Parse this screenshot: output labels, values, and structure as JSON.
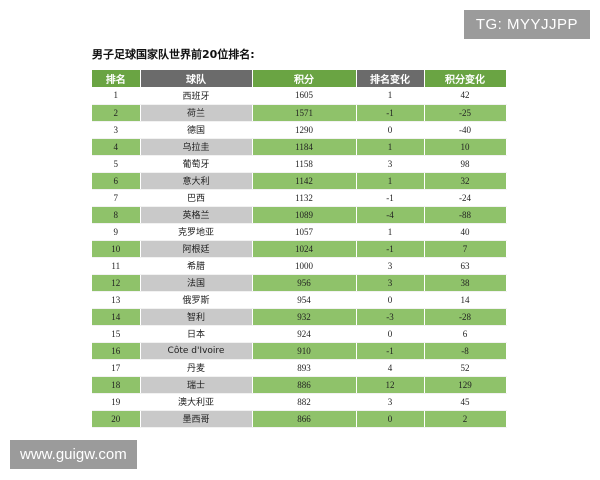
{
  "watermark_top": "TG: MYYJJPP",
  "watermark_bottom": "www.guigw.com",
  "title": "男子足球国家队世界前20位排名:",
  "columns": [
    "排名",
    "球队",
    "积分",
    "排名变化",
    "积分变化"
  ],
  "rows": [
    {
      "rank": "1",
      "team": "西班牙",
      "points": "1605",
      "rank_change": "1",
      "points_change": "42"
    },
    {
      "rank": "2",
      "team": "荷兰",
      "points": "1571",
      "rank_change": "-1",
      "points_change": "-25"
    },
    {
      "rank": "3",
      "team": "德国",
      "points": "1290",
      "rank_change": "0",
      "points_change": "-40"
    },
    {
      "rank": "4",
      "team": "乌拉圭",
      "points": "1184",
      "rank_change": "1",
      "points_change": "10"
    },
    {
      "rank": "5",
      "team": "葡萄牙",
      "points": "1158",
      "rank_change": "3",
      "points_change": "98"
    },
    {
      "rank": "6",
      "team": "意大利",
      "points": "1142",
      "rank_change": "1",
      "points_change": "32"
    },
    {
      "rank": "7",
      "team": "巴西",
      "points": "1132",
      "rank_change": "-1",
      "points_change": "-24"
    },
    {
      "rank": "8",
      "team": "英格兰",
      "points": "1089",
      "rank_change": "-4",
      "points_change": "-88"
    },
    {
      "rank": "9",
      "team": "克罗地亚",
      "points": "1057",
      "rank_change": "1",
      "points_change": "40"
    },
    {
      "rank": "10",
      "team": "阿根廷",
      "points": "1024",
      "rank_change": "-1",
      "points_change": "7"
    },
    {
      "rank": "11",
      "team": "希腊",
      "points": "1000",
      "rank_change": "3",
      "points_change": "63"
    },
    {
      "rank": "12",
      "team": "法国",
      "points": "956",
      "rank_change": "3",
      "points_change": "38"
    },
    {
      "rank": "13",
      "team": "俄罗斯",
      "points": "954",
      "rank_change": "0",
      "points_change": "14"
    },
    {
      "rank": "14",
      "team": "智利",
      "points": "932",
      "rank_change": "-3",
      "points_change": "-28"
    },
    {
      "rank": "15",
      "team": "日本",
      "points": "924",
      "rank_change": "0",
      "points_change": "6"
    },
    {
      "rank": "16",
      "team": "Côte d'Ivoire",
      "points": "910",
      "rank_change": "-1",
      "points_change": "-8"
    },
    {
      "rank": "17",
      "team": "丹麦",
      "points": "893",
      "rank_change": "4",
      "points_change": "52"
    },
    {
      "rank": "18",
      "team": "瑞士",
      "points": "886",
      "rank_change": "12",
      "points_change": "129"
    },
    {
      "rank": "19",
      "team": "澳大利亚",
      "points": "882",
      "rank_change": "3",
      "points_change": "45"
    },
    {
      "rank": "20",
      "team": "墨西哥",
      "points": "866",
      "rank_change": "0",
      "points_change": "2"
    }
  ],
  "colors": {
    "header_green": "#6aa443",
    "header_gray": "#6b6b6b",
    "row_green": "#8fc26a",
    "row_gray": "#c9c9c9"
  }
}
